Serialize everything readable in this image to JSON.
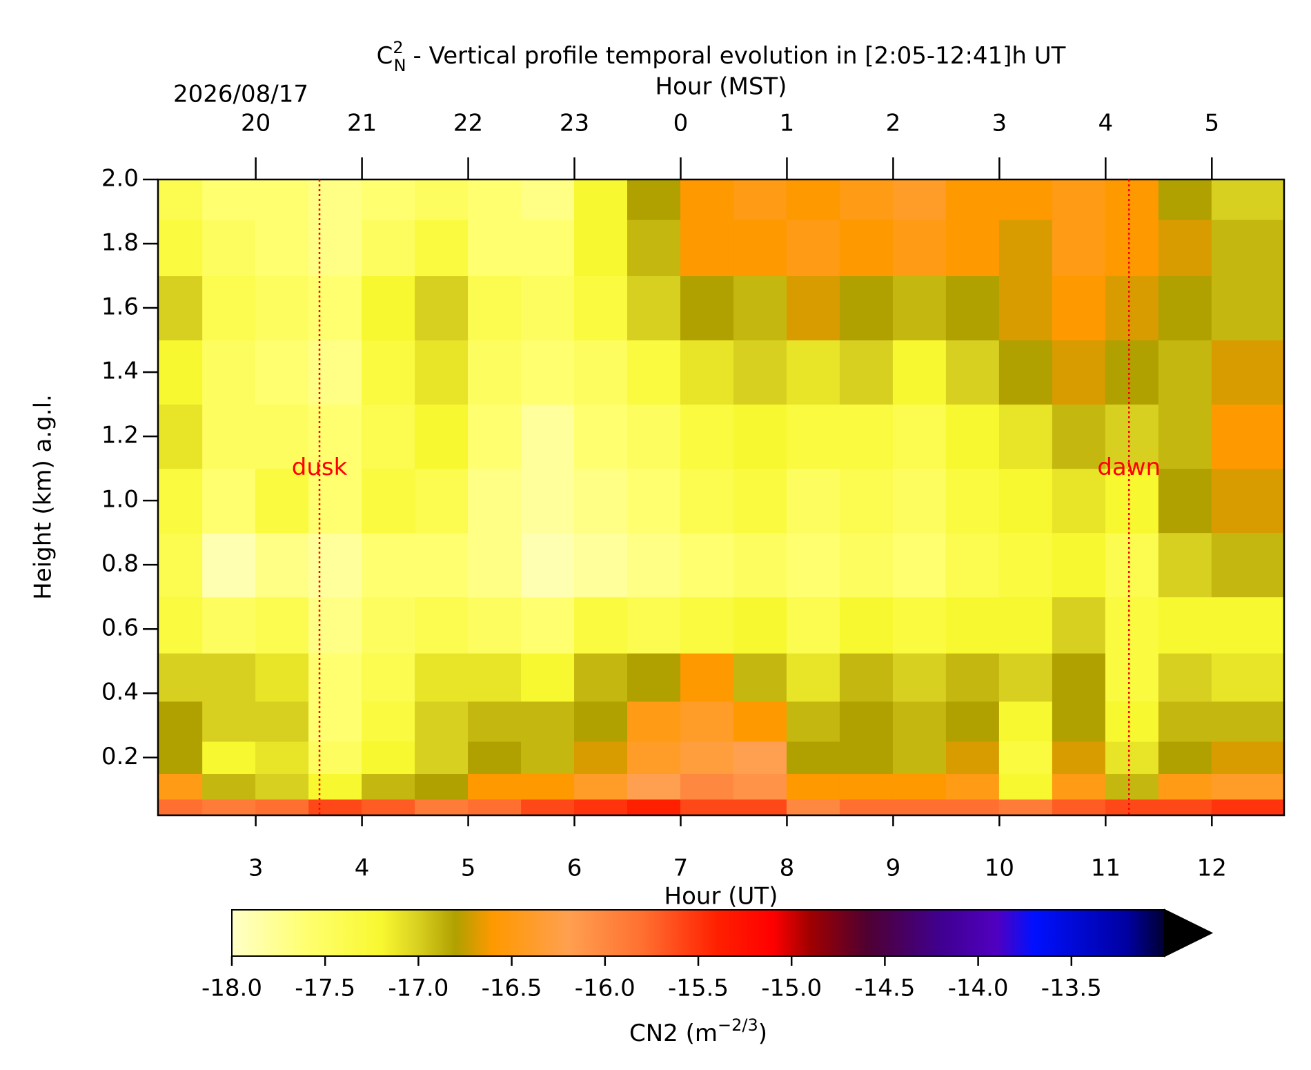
{
  "chart_data": {
    "type": "heatmap",
    "title": {
      "symbol": "C",
      "sub": "N",
      "sup": "2",
      "text": "- Vertical profile temporal evolution in [2:05-12:41]h UT"
    },
    "date": "2026/08/17",
    "xlabel": "Hour (UT)",
    "x2label": "Hour (MST)",
    "ylabel": "Height (km) a.g.l.",
    "xlim": [
      2.08,
      12.68
    ],
    "xticks": [
      3,
      4,
      5,
      6,
      7,
      8,
      9,
      10,
      11,
      12
    ],
    "x2ticks": [
      {
        "value": 3,
        "label": "20"
      },
      {
        "value": 4,
        "label": "21"
      },
      {
        "value": 5,
        "label": "22"
      },
      {
        "value": 6,
        "label": "23"
      },
      {
        "value": 7,
        "label": "0"
      },
      {
        "value": 8,
        "label": "1"
      },
      {
        "value": 9,
        "label": "2"
      },
      {
        "value": 10,
        "label": "3"
      },
      {
        "value": 11,
        "label": "4"
      },
      {
        "value": 12,
        "label": "5"
      }
    ],
    "ylim": [
      0.02,
      2.0
    ],
    "yticks": [
      0.2,
      0.4,
      0.6,
      0.8,
      {
        "value": 1,
        "label": "1.0"
      },
      1.2,
      1.4,
      1.6,
      1.8,
      {
        "value": 2,
        "label": "2.0"
      }
    ],
    "x": [
      2.25,
      2.75,
      3.25,
      3.75,
      4.25,
      4.75,
      5.25,
      5.75,
      6.25,
      6.75,
      7.25,
      7.75,
      8.25,
      8.75,
      9.25,
      9.75,
      10.25,
      10.75,
      11.25,
      11.75,
      12.25
    ],
    "y": [
      0.04,
      0.1,
      0.2,
      0.3,
      0.45,
      0.6,
      0.8,
      1.0,
      1.2,
      1.4,
      1.6,
      1.8,
      1.95
    ],
    "z": [
      [
        -15.8,
        -15.9,
        -15.8,
        -15.6,
        -15.7,
        -15.9,
        -15.8,
        -15.6,
        -15.5,
        -15.4,
        -15.6,
        -15.6,
        -16.0,
        -15.8,
        -15.8,
        -15.8,
        -15.9,
        -15.7,
        -15.6,
        -15.6,
        -15.5
      ],
      [
        -16.5,
        -16.9,
        -17.0,
        -17.2,
        -16.9,
        -16.8,
        -16.6,
        -16.6,
        -16.4,
        -16.2,
        -16.0,
        -16.1,
        -16.6,
        -16.6,
        -16.6,
        -16.5,
        -17.2,
        -16.5,
        -16.9,
        -16.5,
        -16.4
      ],
      [
        -16.8,
        -17.2,
        -17.1,
        -17.5,
        -17.2,
        -17.0,
        -16.8,
        -16.9,
        -16.7,
        -16.4,
        -16.3,
        -16.2,
        -16.8,
        -16.8,
        -16.9,
        -16.7,
        -17.3,
        -16.7,
        -17.1,
        -16.8,
        -16.7
      ],
      [
        -16.8,
        -17.0,
        -17.0,
        -17.6,
        -17.3,
        -17.0,
        -16.9,
        -16.9,
        -16.8,
        -16.5,
        -16.4,
        -16.6,
        -16.9,
        -16.8,
        -16.9,
        -16.8,
        -17.2,
        -16.8,
        -17.2,
        -16.9,
        -16.9
      ],
      [
        -17.0,
        -17.0,
        -17.1,
        -17.6,
        -17.4,
        -17.1,
        -17.1,
        -17.2,
        -16.9,
        -16.8,
        -16.6,
        -16.9,
        -17.1,
        -16.9,
        -17.0,
        -16.9,
        -17.0,
        -16.8,
        -17.3,
        -17.0,
        -17.1
      ],
      [
        -17.3,
        -17.5,
        -17.4,
        -17.7,
        -17.5,
        -17.4,
        -17.5,
        -17.6,
        -17.3,
        -17.4,
        -17.3,
        -17.2,
        -17.4,
        -17.2,
        -17.3,
        -17.2,
        -17.2,
        -17.0,
        -17.3,
        -17.2,
        -17.2
      ],
      [
        -17.4,
        -17.9,
        -17.7,
        -17.8,
        -17.6,
        -17.6,
        -17.7,
        -17.9,
        -17.8,
        -17.7,
        -17.6,
        -17.5,
        -17.6,
        -17.5,
        -17.6,
        -17.4,
        -17.3,
        -17.2,
        -17.4,
        -17.0,
        -16.9
      ],
      [
        -17.3,
        -17.6,
        -17.3,
        -17.6,
        -17.3,
        -17.4,
        -17.7,
        -17.8,
        -17.7,
        -17.6,
        -17.4,
        -17.3,
        -17.5,
        -17.4,
        -17.5,
        -17.3,
        -17.2,
        -17.1,
        -17.2,
        -16.8,
        -16.7
      ],
      [
        -17.1,
        -17.5,
        -17.5,
        -17.6,
        -17.4,
        -17.2,
        -17.6,
        -17.8,
        -17.6,
        -17.5,
        -17.3,
        -17.2,
        -17.3,
        -17.3,
        -17.4,
        -17.2,
        -17.1,
        -16.9,
        -17.0,
        -16.9,
        -16.6
      ],
      [
        -17.2,
        -17.5,
        -17.6,
        -17.7,
        -17.3,
        -17.1,
        -17.5,
        -17.6,
        -17.5,
        -17.3,
        -17.1,
        -17.0,
        -17.1,
        -17.0,
        -17.2,
        -17.0,
        -16.8,
        -16.7,
        -16.8,
        -16.9,
        -16.7
      ],
      [
        -17.0,
        -17.4,
        -17.5,
        -17.6,
        -17.2,
        -17.0,
        -17.4,
        -17.5,
        -17.3,
        -17.0,
        -16.8,
        -16.9,
        -16.7,
        -16.8,
        -16.9,
        -16.8,
        -16.7,
        -16.6,
        -16.7,
        -16.8,
        -16.9
      ],
      [
        -17.3,
        -17.5,
        -17.6,
        -17.7,
        -17.5,
        -17.3,
        -17.6,
        -17.6,
        -17.2,
        -16.9,
        -16.6,
        -16.6,
        -16.5,
        -16.6,
        -16.5,
        -16.6,
        -16.7,
        -16.5,
        -16.6,
        -16.7,
        -16.9
      ],
      [
        -17.4,
        -17.6,
        -17.6,
        -17.7,
        -17.6,
        -17.5,
        -17.6,
        -17.7,
        -17.2,
        -16.8,
        -16.6,
        -16.5,
        -16.6,
        -16.5,
        -16.4,
        -16.6,
        -16.6,
        -16.5,
        -16.6,
        -16.8,
        -17.0
      ]
    ],
    "colormap": {
      "values": [
        -18,
        -17.6,
        -17.2,
        -17.0,
        -16.8,
        -16.6,
        -16.2,
        -15.8,
        -15.4,
        -15.1,
        -14.9,
        -14.6,
        -14.2,
        -13.9,
        -13.7,
        -13.2,
        -13.0
      ],
      "colors": [
        "#ffffc8",
        "#ffff70",
        "#f8f830",
        "#d8d020",
        "#b0a000",
        "#ff9900",
        "#ffa050",
        "#ff7030",
        "#ff2000",
        "#ff0000",
        "#a00000",
        "#500030",
        "#400090",
        "#5000c0",
        "#0010ff",
        "#0000a0",
        "#000030"
      ]
    },
    "extend_color": "#000000",
    "clim": [
      -18,
      -13
    ],
    "cticks": [
      {
        "value": -18,
        "label": "-18.0"
      },
      -17.5,
      {
        "value": -17,
        "label": "-17.0"
      },
      -16.5,
      {
        "value": -16,
        "label": "-16.0"
      },
      -15.5,
      {
        "value": -15,
        "label": "-15.0"
      },
      -14.5,
      {
        "value": -14,
        "label": "-14.0"
      },
      -13.5
    ],
    "colorbar_label": {
      "text": "CN2 (m",
      "sup": "−2/3",
      "end": ")"
    },
    "annotations": [
      {
        "text": "dusk",
        "x": 3.6,
        "y": 1.1,
        "color": "#ff0000"
      },
      {
        "text": "dawn",
        "x": 11.22,
        "y": 1.1,
        "color": "#ff0000"
      }
    ]
  }
}
